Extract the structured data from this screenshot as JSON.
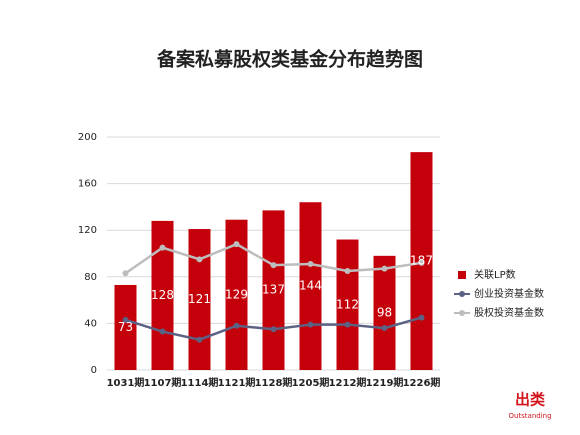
{
  "chart_data": {
    "type": "bar",
    "title": "备案私募股权类基金分布趋势图",
    "categories": [
      "1031期",
      "1107期",
      "1114期",
      "1121期",
      "1128期",
      "1205期",
      "1212期",
      "1219期",
      "1226期"
    ],
    "series": [
      {
        "name": "关联LP数",
        "type": "bar",
        "color": "#c4000a",
        "values": [
          73,
          128,
          121,
          129,
          137,
          144,
          112,
          98,
          187
        ]
      },
      {
        "name": "创业投资基金数",
        "type": "line",
        "color": "#5b6284",
        "values": [
          43,
          33,
          26,
          38,
          35,
          39,
          39,
          36,
          45
        ]
      },
      {
        "name": "股权投资基金数",
        "type": "line",
        "color": "#bdbdbd",
        "values": [
          83,
          105,
          95,
          108,
          90,
          91,
          85,
          87,
          92
        ]
      }
    ],
    "ylim": [
      0,
      200
    ],
    "yticks": [
      0,
      40,
      80,
      120,
      160,
      200
    ],
    "grid": true,
    "legend": "right"
  },
  "watermark": {
    "name": "出类",
    "sub": "Outstanding"
  }
}
